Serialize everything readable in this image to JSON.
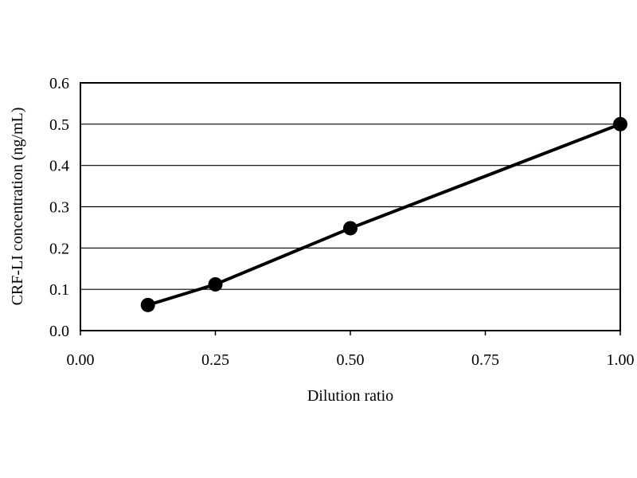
{
  "chart_data": {
    "type": "line",
    "title": "",
    "xlabel": "Dilution ratio",
    "ylabel": "CRF-LI concentration (ng/mL)",
    "xlim": [
      0,
      1
    ],
    "ylim": [
      0,
      0.6
    ],
    "x_ticks": [
      "0.00",
      "0.25",
      "0.50",
      "0.75",
      "1.00"
    ],
    "y_ticks": [
      "0.0",
      "0.1",
      "0.2",
      "0.3",
      "0.4",
      "0.5",
      "0.6"
    ],
    "grid": "horizontal",
    "legend": "none",
    "series": [
      {
        "x": [
          0.125,
          0.25,
          0.5,
          1.0
        ],
        "y": [
          0.062,
          0.112,
          0.248,
          0.5
        ],
        "color": "#000000",
        "marker": "filled-circle"
      }
    ]
  }
}
